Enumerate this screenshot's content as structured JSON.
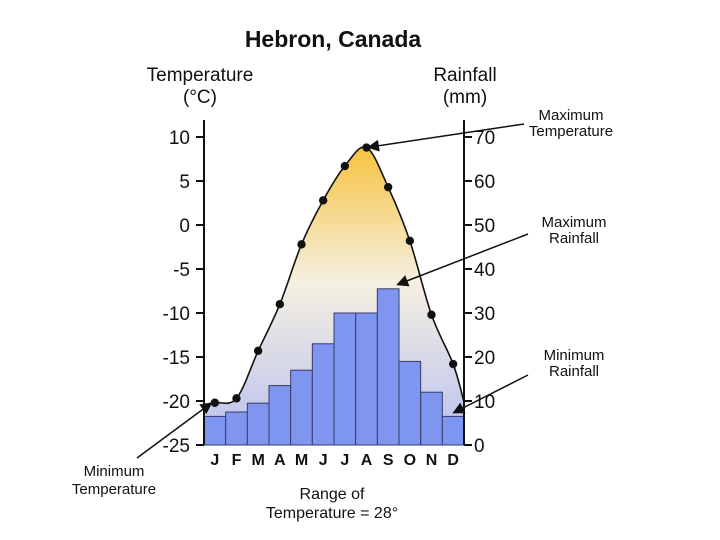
{
  "chart_data": {
    "type": "bar",
    "title": "Hebron, Canada",
    "left_axis_label": [
      "Temperature",
      "(°C)"
    ],
    "right_axis_label": [
      "Rainfall",
      "(mm)"
    ],
    "categories": [
      "J",
      "F",
      "M",
      "A",
      "M",
      "J",
      "J",
      "A",
      "S",
      "O",
      "N",
      "D"
    ],
    "left_ticks": [
      "10",
      "5",
      "0",
      "-5",
      "-10",
      "-15",
      "-20",
      "-25"
    ],
    "right_ticks": [
      "70",
      "60",
      "50",
      "40",
      "30",
      "20",
      "10",
      "0"
    ],
    "ylim_temperature": [
      -25,
      10
    ],
    "ylim_rainfall": [
      0,
      70
    ],
    "series": [
      {
        "type": "bar",
        "axis": "right",
        "values": [
          6.5,
          7.5,
          9.5,
          13.5,
          17,
          23,
          30,
          30,
          35.5,
          19,
          12,
          6.5
        ]
      },
      {
        "type": "line",
        "axis": "left",
        "values": [
          -20.2,
          -19.7,
          -14.3,
          -9.0,
          -2.2,
          2.8,
          6.7,
          8.8,
          4.3,
          -1.8,
          -10.2,
          -15.8
        ]
      }
    ],
    "annotations": [
      {
        "text": [
          "Maximum",
          "Temperature"
        ]
      },
      {
        "text": [
          "Maximum",
          "Rainfall"
        ]
      },
      {
        "text": [
          "Minimum",
          "Rainfall"
        ]
      },
      {
        "text": [
          "Minimum",
          "Temperature"
        ]
      },
      {
        "text": [
          "Range of",
          "Temperature = 28°"
        ]
      }
    ],
    "colors": {
      "bar": "#7f96f0",
      "bar_stroke": "#3a3a6a",
      "line": "#111111",
      "gradient_top": "#f7c23e",
      "gradient_bottom": "#b8c0f0"
    }
  }
}
